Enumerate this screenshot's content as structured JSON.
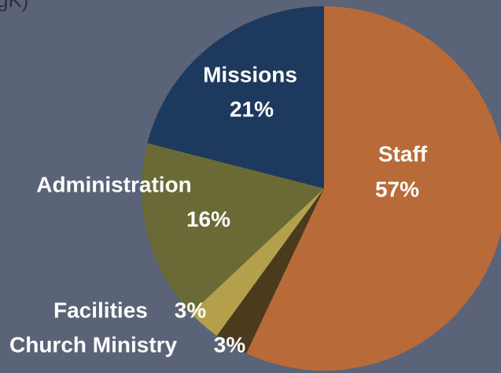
{
  "chart_data": {
    "type": "pie",
    "title": "gK)",
    "categories": [
      "Staff",
      "Church Ministry",
      "Facilities",
      "Administration",
      "Missions"
    ],
    "values": [
      57,
      3,
      3,
      16,
      21
    ],
    "value_labels": [
      "57%",
      "3%",
      "3%",
      "16%",
      "21%"
    ],
    "colors": [
      "#b86b38",
      "#4b3a1b",
      "#b4a04a",
      "#6a6a36",
      "#1d3a5e"
    ]
  }
}
